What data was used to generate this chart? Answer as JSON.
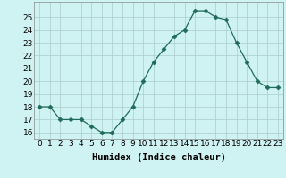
{
  "x": [
    0,
    1,
    2,
    3,
    4,
    5,
    6,
    7,
    8,
    9,
    10,
    11,
    12,
    13,
    14,
    15,
    16,
    17,
    18,
    19,
    20,
    21,
    22,
    23
  ],
  "y": [
    18,
    18,
    17,
    17,
    17,
    16.5,
    16,
    16,
    17,
    18,
    20,
    21.5,
    22.5,
    23.5,
    24,
    25.5,
    25.5,
    25,
    24.8,
    23,
    21.5,
    20,
    19.5,
    19.5
  ],
  "xlabel": "Humidex (Indice chaleur)",
  "xlim": [
    -0.5,
    23.5
  ],
  "ylim": [
    15.5,
    26.2
  ],
  "yticks": [
    16,
    17,
    18,
    19,
    20,
    21,
    22,
    23,
    24,
    25
  ],
  "xticks": [
    0,
    1,
    2,
    3,
    4,
    5,
    6,
    7,
    8,
    9,
    10,
    11,
    12,
    13,
    14,
    15,
    16,
    17,
    18,
    19,
    20,
    21,
    22,
    23
  ],
  "line_color": "#1f6b5a",
  "marker": "D",
  "marker_size": 2.5,
  "bg_color": "#cff2f2",
  "grid_color": "#aacccc",
  "xlabel_fontsize": 7.5,
  "tick_fontsize": 6.5
}
